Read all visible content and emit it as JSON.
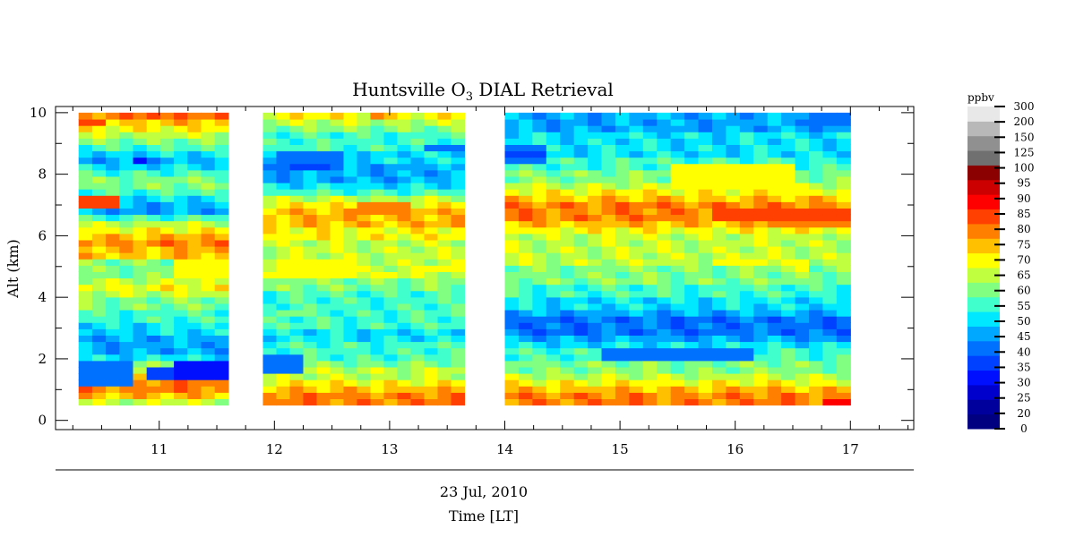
{
  "chart_data": {
    "type": "heatmap",
    "title": "Huntsville O",
    "title_subscript": "3",
    "title_suffix": " DIAL Retrieval",
    "ylabel": "Alt (km)",
    "xlabel_date": "23 Jul, 2010",
    "xlabel": "Time [LT]",
    "xlim": [
      10.1,
      17.55
    ],
    "ylim": [
      -0.3,
      10.2
    ],
    "x_ticks": [
      11,
      12,
      13,
      14,
      15,
      16,
      17
    ],
    "x_tick_labels": [
      "11",
      "12",
      "13",
      "14",
      "15",
      "16",
      "17"
    ],
    "y_ticks": [
      0,
      2,
      4,
      6,
      8,
      10
    ],
    "y_tick_labels": [
      "0",
      "2",
      "4",
      "6",
      "8",
      "10"
    ],
    "data_alt_range": [
      0.5,
      10.0
    ],
    "segments": [
      {
        "start": 10.3,
        "end": 11.6,
        "profile": [
          65,
          75,
          80,
          80,
          80,
          70,
          60,
          50,
          45,
          45,
          45,
          50,
          50,
          55,
          55,
          60,
          60,
          65,
          70,
          65,
          60,
          60,
          60,
          75,
          75,
          80,
          75,
          70,
          65,
          55,
          45,
          45,
          50,
          55,
          60,
          60,
          55,
          50,
          45,
          50,
          55,
          60,
          65,
          70,
          75,
          80
        ],
        "hot": [
          [
            10.3,
            10.7,
            7.0,
            7.4,
            85
          ],
          [
            10.3,
            10.5,
            9.5,
            9.7,
            85
          ],
          [
            10.9,
            11.0,
            9.8,
            10.0,
            85
          ],
          [
            11.1,
            11.6,
            4.7,
            5.2,
            70
          ],
          [
            10.9,
            11.2,
            1.4,
            1.8,
            35
          ],
          [
            11.1,
            11.6,
            1.3,
            1.9,
            30
          ],
          [
            10.75,
            10.85,
            8.4,
            8.6,
            30
          ],
          [
            10.3,
            10.8,
            1.2,
            1.9,
            40
          ]
        ]
      },
      {
        "start": 11.9,
        "end": 13.65,
        "profile": [
          80,
          80,
          75,
          70,
          65,
          65,
          60,
          55,
          55,
          55,
          50,
          50,
          55,
          55,
          55,
          55,
          55,
          55,
          60,
          60,
          65,
          65,
          65,
          65,
          65,
          65,
          70,
          70,
          75,
          75,
          75,
          70,
          65,
          55,
          50,
          45,
          45,
          45,
          50,
          50,
          55,
          55,
          55,
          60,
          65,
          70
        ],
        "hot": [
          [
            11.9,
            12.25,
            1.6,
            2.1,
            40
          ],
          [
            12.0,
            12.6,
            8.1,
            8.7,
            40
          ],
          [
            12.1,
            12.5,
            8.2,
            8.4,
            35
          ],
          [
            12.0,
            12.7,
            4.7,
            5.2,
            70
          ],
          [
            12.8,
            13.1,
            4.6,
            4.9,
            70
          ],
          [
            13.3,
            13.65,
            4.9,
            5.1,
            70
          ],
          [
            12.7,
            13.2,
            6.6,
            7.1,
            80
          ],
          [
            12.8,
            13.0,
            9.8,
            10.0,
            80
          ],
          [
            13.3,
            13.65,
            8.7,
            9.0,
            40
          ],
          [
            12.3,
            12.5,
            9.9,
            10.0,
            70
          ],
          [
            12.0,
            12.25,
            3.3,
            3.5,
            60
          ]
        ]
      },
      {
        "start": 14.0,
        "end": 17.0,
        "profile": [
          80,
          80,
          75,
          70,
          65,
          60,
          60,
          55,
          55,
          50,
          45,
          40,
          40,
          40,
          45,
          50,
          50,
          55,
          55,
          60,
          60,
          60,
          65,
          65,
          65,
          65,
          65,
          70,
          75,
          80,
          80,
          80,
          75,
          70,
          65,
          60,
          60,
          55,
          55,
          50,
          50,
          50,
          50,
          45,
          45,
          45
        ],
        "hot": [
          [
            16.2,
            17.0,
            6.4,
            7.0,
            85
          ],
          [
            15.8,
            16.2,
            6.5,
            6.8,
            85
          ],
          [
            16.8,
            17.0,
            0.5,
            0.7,
            90
          ],
          [
            14.0,
            14.3,
            8.3,
            9.0,
            40
          ],
          [
            14.0,
            14.35,
            8.5,
            8.75,
            35
          ],
          [
            15.5,
            16.5,
            7.5,
            8.3,
            70
          ],
          [
            16.7,
            17.0,
            9.6,
            10.0,
            40
          ],
          [
            15.8,
            16.0,
            5.05,
            5.2,
            70
          ],
          [
            16.1,
            16.3,
            5.0,
            5.2,
            70
          ],
          [
            16.5,
            16.7,
            4.85,
            5.2,
            70
          ],
          [
            14.8,
            16.2,
            2.0,
            2.4,
            40
          ],
          [
            16.3,
            17.0,
            6.3,
            6.5,
            80
          ]
        ]
      }
    ],
    "colorbar": {
      "unit": "ppbv",
      "levels": [
        0,
        20,
        25,
        30,
        35,
        40,
        45,
        50,
        55,
        60,
        65,
        70,
        75,
        80,
        85,
        90,
        95,
        100,
        125,
        150,
        200,
        300
      ],
      "labels": [
        "0",
        "20",
        "25",
        "30",
        "35",
        "40",
        "45",
        "50",
        "55",
        "60",
        "65",
        "70",
        "75",
        "80",
        "85",
        "90",
        "95",
        "100",
        "125",
        "150",
        "200",
        "300"
      ],
      "colors": [
        "#000080",
        "#00009c",
        "#0000cc",
        "#0010ff",
        "#0040ff",
        "#0070ff",
        "#00a8ff",
        "#00e8ff",
        "#40ffcc",
        "#80ff80",
        "#c0ff40",
        "#ffff00",
        "#ffc000",
        "#ff8000",
        "#ff4000",
        "#ff0000",
        "#cc0000",
        "#8b0000",
        "#707070",
        "#909090",
        "#b8b8b8",
        "#e8e8e8"
      ]
    }
  }
}
